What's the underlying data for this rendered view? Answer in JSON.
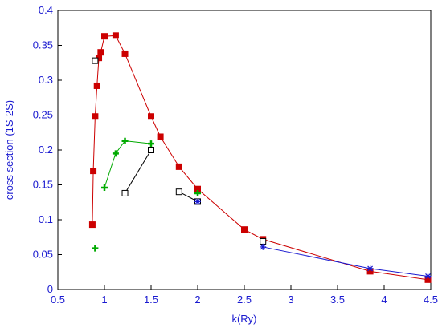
{
  "chart_data": {
    "type": "scatter",
    "xlabel": "k(Ry)",
    "ylabel": "cross section (1S-2S)",
    "xlim": [
      0.5,
      4.5
    ],
    "ylim": [
      0,
      0.4
    ],
    "x_ticks": [
      "0.5",
      "1",
      "1.5",
      "2",
      "2.5",
      "3",
      "3.5",
      "4",
      "4.5"
    ],
    "y_ticks": [
      "0",
      "0.05",
      "0.1",
      "0.15",
      "0.2",
      "0.25",
      "0.3",
      "0.35",
      "0.4"
    ],
    "grid": false,
    "colors": {
      "axis": "#1a1ad0",
      "frame": "#000000"
    },
    "series": [
      {
        "marker": "filled-square",
        "color": "#cc0000",
        "line": true,
        "x": [
          0.87,
          0.88,
          0.9,
          0.92,
          0.94,
          0.96,
          1.0,
          1.12,
          1.22,
          1.5,
          1.6,
          1.8,
          2.0,
          2.5,
          2.7,
          3.85,
          4.47
        ],
        "y": [
          0.093,
          0.17,
          0.248,
          0.292,
          0.332,
          0.34,
          0.363,
          0.364,
          0.338,
          0.248,
          0.219,
          0.176,
          0.144,
          0.086,
          0.072,
          0.026,
          0.014
        ]
      },
      {
        "marker": "plus",
        "color": "#00aa00",
        "line": false,
        "x": [
          0.9
        ],
        "y": [
          0.059
        ]
      },
      {
        "marker": "plus",
        "color": "#00aa00",
        "line": true,
        "x": [
          1.0,
          1.12,
          1.22,
          1.5
        ],
        "y": [
          0.146,
          0.195,
          0.213,
          0.209
        ]
      },
      {
        "marker": "plus",
        "color": "#00aa00",
        "line": false,
        "x": [
          2.0
        ],
        "y": [
          0.138
        ]
      },
      {
        "marker": "open-square",
        "color": "#000000",
        "line": false,
        "x": [
          0.9
        ],
        "y": [
          0.328
        ]
      },
      {
        "marker": "open-square",
        "color": "#000000",
        "line": true,
        "x": [
          1.22,
          1.5
        ],
        "y": [
          0.138,
          0.2
        ]
      },
      {
        "marker": "open-square",
        "color": "#000000",
        "line": true,
        "x": [
          1.8,
          2.0
        ],
        "y": [
          0.14,
          0.126
        ]
      },
      {
        "marker": "open-square",
        "color": "#000000",
        "line": false,
        "x": [
          2.7
        ],
        "y": [
          0.069
        ]
      },
      {
        "marker": "asterisk",
        "color": "#1a1ad0",
        "line": false,
        "x": [
          2.0
        ],
        "y": [
          0.126
        ]
      },
      {
        "marker": "asterisk",
        "color": "#1a1ad0",
        "line": true,
        "x": [
          2.7,
          3.85,
          4.47
        ],
        "y": [
          0.061,
          0.03,
          0.019
        ]
      }
    ]
  }
}
